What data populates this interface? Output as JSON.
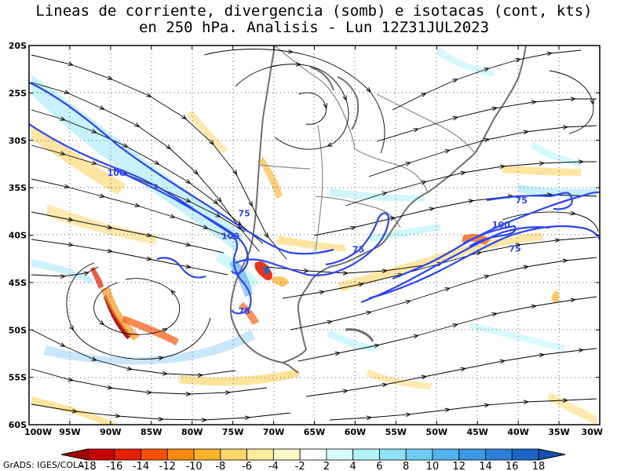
{
  "title": {
    "line1": "Lineas de corriente, divergencia (somb) e isotacas (cont, kts)",
    "line2": "en 250 hPa. Analisis - Lun 12Z31JUL2023"
  },
  "credit": "GrADS: IGES/COLA",
  "map_data": {
    "lat_labels": [
      "20S",
      "25S",
      "30S",
      "35S",
      "40S",
      "45S",
      "50S",
      "55S",
      "60S"
    ],
    "lon_labels": [
      "100W",
      "95W",
      "90W",
      "85W",
      "80W",
      "75W",
      "70W",
      "65W",
      "60W",
      "55W",
      "50W",
      "45W",
      "40W",
      "35W",
      "30W"
    ],
    "isotach_labels": [
      {
        "text": "100",
        "lon": -89.3,
        "lat": -33.4
      },
      {
        "text": "75",
        "lon": -73.6,
        "lat": -37.7
      },
      {
        "text": "100",
        "lon": -75.3,
        "lat": -40.1
      },
      {
        "text": "75",
        "lon": -59.6,
        "lat": -41.5
      },
      {
        "text": "75",
        "lon": -73.6,
        "lat": -48.0
      },
      {
        "text": "75",
        "lon": -39.6,
        "lat": -36.3
      },
      {
        "text": "100",
        "lon": -42.1,
        "lat": -38.9
      },
      {
        "text": "75",
        "lon": -40.4,
        "lat": -41.4
      }
    ],
    "colors": {
      "isotach": "#2d44ee",
      "coast": "#6e6e6e",
      "streamline": "#000000"
    }
  },
  "colorbar": {
    "labels": [
      "-18",
      "-16",
      "-14",
      "-12",
      "-10",
      "-8",
      "-6",
      "-4",
      "-2",
      "2",
      "4",
      "6",
      "8",
      "10",
      "12",
      "14",
      "16",
      "18"
    ],
    "colors": [
      "#a50000",
      "#c80000",
      "#e42000",
      "#f65000",
      "#fb8a0a",
      "#fdb32c",
      "#fed56a",
      "#ffea9a",
      "#fff8c8",
      "#ffffff",
      "#d6fdfd",
      "#b2f2fa",
      "#8fe1f7",
      "#6fcbf4",
      "#52b3ee",
      "#3a98e4",
      "#2a7ed6",
      "#1c64c6",
      "#1550b2"
    ]
  }
}
